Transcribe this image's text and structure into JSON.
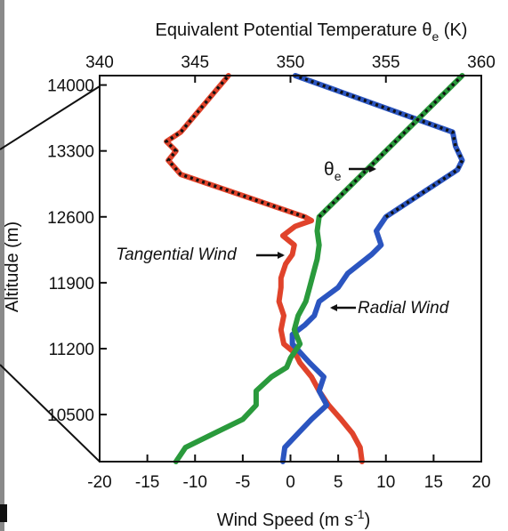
{
  "chart_data": {
    "type": "line",
    "top_axis": {
      "title": "Equivalent Potential Temperature θ",
      "title_sub": "e",
      "title_unit": " (K)",
      "range": [
        340,
        360
      ],
      "ticks": [
        "340",
        "345",
        "350",
        "355",
        "360"
      ]
    },
    "bottom_axis": {
      "title": "Wind Speed (m s",
      "title_sup": "-1",
      "title_end": ")",
      "range": [
        -20,
        20
      ],
      "ticks": [
        "-20",
        "-15",
        "-10",
        "-5",
        "0",
        "5",
        "10",
        "15",
        "20"
      ]
    },
    "left_axis": {
      "title": "Altitude (m)",
      "range": [
        10000,
        14100
      ],
      "ticks": [
        "14000",
        "13300",
        "12600",
        "11900",
        "11200",
        "10500"
      ]
    },
    "series": [
      {
        "name": "Tangential Wind",
        "axis": "bottom",
        "color": "#e0432b",
        "points": [
          [
            7.5,
            10000
          ],
          [
            7.3,
            10150
          ],
          [
            6.5,
            10300
          ],
          [
            5.3,
            10450
          ],
          [
            4.0,
            10600
          ],
          [
            3.0,
            10750
          ],
          [
            2.2,
            10900
          ],
          [
            1.0,
            11050
          ],
          [
            0.5,
            11150
          ],
          [
            -0.7,
            11250
          ],
          [
            -1.0,
            11400
          ],
          [
            -0.7,
            11550
          ],
          [
            -1.2,
            11700
          ],
          [
            -1.0,
            11850
          ],
          [
            -1.0,
            11950
          ],
          [
            -0.5,
            12100
          ],
          [
            0.2,
            12200
          ],
          [
            0.4,
            12300
          ],
          [
            -0.8,
            12400
          ],
          [
            0.5,
            12500
          ],
          [
            2.2,
            12560
          ],
          [
            1.5,
            12600
          ],
          [
            -11.5,
            13050
          ],
          [
            -12.8,
            13200
          ],
          [
            -12.0,
            13300
          ],
          [
            -13.0,
            13400
          ],
          [
            -11.5,
            13500
          ],
          [
            -6.5,
            14100
          ]
        ]
      },
      {
        "name": "Radial Wind",
        "axis": "bottom",
        "color": "#2b55c0",
        "points": [
          [
            -0.8,
            10000
          ],
          [
            -0.6,
            10150
          ],
          [
            0.8,
            10300
          ],
          [
            2.2,
            10450
          ],
          [
            3.8,
            10600
          ],
          [
            3.0,
            10750
          ],
          [
            3.5,
            10900
          ],
          [
            2.0,
            11050
          ],
          [
            0.2,
            11250
          ],
          [
            0.2,
            11350
          ],
          [
            1.5,
            11450
          ],
          [
            2.5,
            11550
          ],
          [
            3.0,
            11700
          ],
          [
            5.0,
            11850
          ],
          [
            6.0,
            12000
          ],
          [
            8.5,
            12200
          ],
          [
            9.5,
            12300
          ],
          [
            9.0,
            12450
          ],
          [
            10.0,
            12600
          ],
          [
            17.5,
            13100
          ],
          [
            18.0,
            13200
          ],
          [
            17.3,
            13350
          ],
          [
            17.0,
            13500
          ],
          [
            0.5,
            14100
          ]
        ]
      },
      {
        "name": "θe",
        "axis": "top",
        "color": "#2a9a3c",
        "points": [
          [
            344.0,
            10000
          ],
          [
            344.5,
            10150
          ],
          [
            346.0,
            10300
          ],
          [
            347.5,
            10450
          ],
          [
            348.2,
            10600
          ],
          [
            348.2,
            10750
          ],
          [
            349.0,
            10900
          ],
          [
            349.8,
            11000
          ],
          [
            350.0,
            11100
          ],
          [
            350.5,
            11250
          ],
          [
            350.2,
            11400
          ],
          [
            350.4,
            11550
          ],
          [
            350.8,
            11700
          ],
          [
            351.0,
            11850
          ],
          [
            351.2,
            12000
          ],
          [
            351.4,
            12150
          ],
          [
            351.5,
            12300
          ],
          [
            351.4,
            12450
          ],
          [
            351.5,
            12600
          ],
          [
            359.0,
            14100
          ]
        ]
      }
    ],
    "dotted_overlays": [
      {
        "axis": "bottom",
        "points": [
          [
            1.5,
            12600
          ],
          [
            -11.5,
            13050
          ],
          [
            -12.8,
            13200
          ],
          [
            -12.0,
            13300
          ],
          [
            -13.0,
            13400
          ],
          [
            -11.5,
            13500
          ],
          [
            -6.5,
            14100
          ]
        ]
      },
      {
        "axis": "bottom",
        "points": [
          [
            10.0,
            12600
          ],
          [
            17.5,
            13100
          ],
          [
            18.0,
            13200
          ],
          [
            17.3,
            13350
          ],
          [
            17.0,
            13500
          ],
          [
            0.5,
            14100
          ]
        ]
      },
      {
        "axis": "top",
        "points": [
          [
            351.5,
            12600
          ],
          [
            359.0,
            14100
          ]
        ]
      }
    ],
    "annotations": [
      {
        "name": "tangential",
        "text": "Tangential Wind",
        "italic": true
      },
      {
        "name": "radial",
        "text": "Radial Wind",
        "italic": true
      },
      {
        "name": "theta",
        "text": "θ",
        "sub": "e",
        "italic": false
      }
    ]
  }
}
